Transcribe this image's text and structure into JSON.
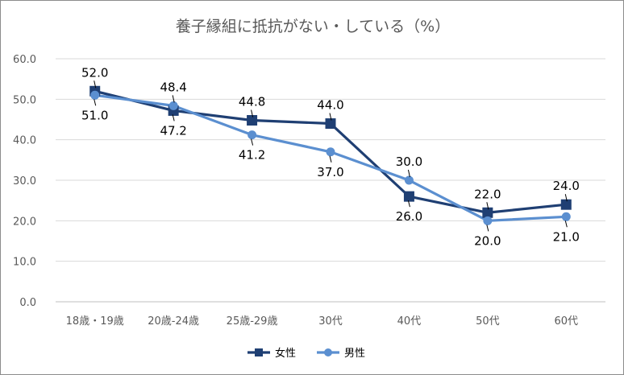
{
  "chart_data": {
    "type": "line",
    "title": "養子縁組に抵抗がない・している（%）",
    "categories": [
      "18歳・19歳",
      "20歳-24歳",
      "25歳-29歳",
      "30代",
      "40代",
      "50代",
      "60代"
    ],
    "series": [
      {
        "name": "女性",
        "values": [
          52.0,
          47.2,
          44.8,
          44.0,
          26.0,
          22.0,
          24.0
        ],
        "color": "#1f3f73",
        "marker": "square",
        "labels": [
          "52.0",
          "47.2",
          "44.8",
          "44.0",
          "26.0",
          "22.0",
          "24.0"
        ]
      },
      {
        "name": "男性",
        "values": [
          51.0,
          48.4,
          41.2,
          37.0,
          30.0,
          20.0,
          21.0
        ],
        "color": "#5b8fd0",
        "marker": "circle",
        "labels": [
          "51.0",
          "48.4",
          "41.2",
          "37.0",
          "30.0",
          "20.0",
          "21.0"
        ]
      }
    ],
    "ylim": [
      0,
      60
    ],
    "yticks": [
      "0.0",
      "10.0",
      "20.0",
      "30.0",
      "40.0",
      "50.0",
      "60.0"
    ],
    "grid": true,
    "legend_position": "bottom"
  }
}
